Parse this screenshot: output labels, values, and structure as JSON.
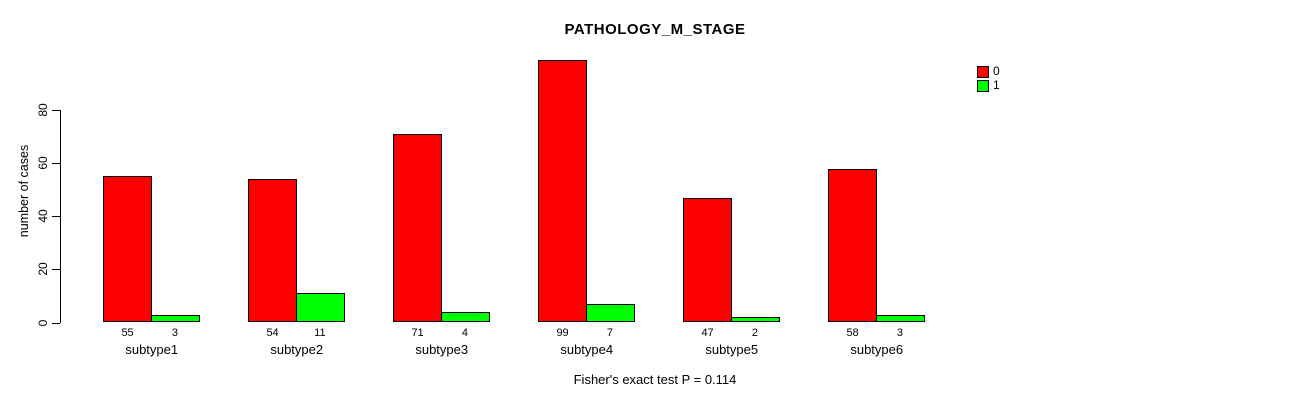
{
  "title": "PATHOLOGY_M_STAGE",
  "footer": "Fisher's exact test P = 0.114",
  "ylabel": "number of cases",
  "legend": [
    {
      "label": "0",
      "color": "#ff0000"
    },
    {
      "label": "1",
      "color": "#00ff00"
    }
  ],
  "chart_data": {
    "type": "bar",
    "title": "PATHOLOGY_M_STAGE",
    "xlabel": "",
    "ylabel": "number of cases",
    "categories": [
      "subtype1",
      "subtype2",
      "subtype3",
      "subtype4",
      "subtype5",
      "subtype6"
    ],
    "series": [
      {
        "name": "0",
        "color": "#ff0000",
        "values": [
          55,
          54,
          71,
          99,
          47,
          58
        ]
      },
      {
        "name": "1",
        "color": "#00ff00",
        "values": [
          3,
          11,
          4,
          7,
          2,
          3
        ]
      }
    ],
    "yticks": [
      0,
      20,
      40,
      60,
      80
    ],
    "ylim": [
      0,
      100
    ],
    "bar_value_labels": true,
    "grid": false,
    "legend_position": "top-right",
    "annotation": "Fisher's exact test P = 0.114"
  }
}
